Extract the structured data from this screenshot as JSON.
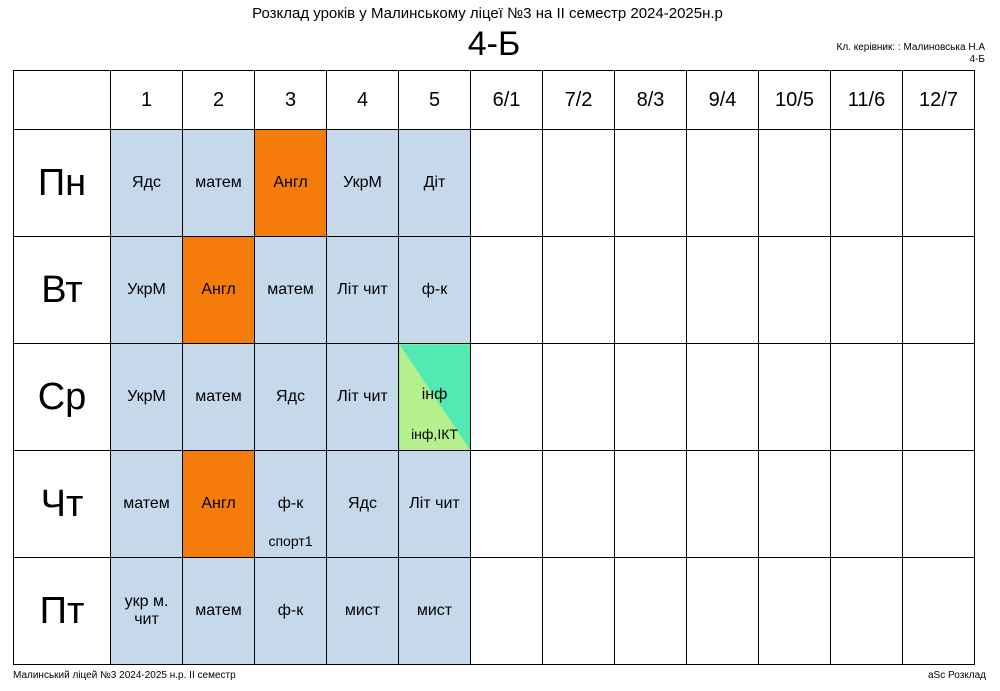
{
  "header": {
    "title": "Розклад уроків у Малинському ліцеї №3 на ІІ семестр 2024-2025н.р",
    "class_name": "4-Б",
    "teacher_line": "Кл. керівник: : Малиновська Н.А",
    "teacher_class": "4-Б"
  },
  "periods": [
    "1",
    "2",
    "3",
    "4",
    "5",
    "6/1",
    "7/2",
    "8/3",
    "9/4",
    "10/5",
    "11/6",
    "12/7"
  ],
  "days": [
    {
      "name": "Пн",
      "lessons": [
        {
          "subject": "Ядс",
          "room": "",
          "type": "regular"
        },
        {
          "subject": "матем",
          "room": "",
          "type": "regular"
        },
        {
          "subject": "Англ",
          "room": "",
          "type": "english"
        },
        {
          "subject": "УкрМ",
          "room": "",
          "type": "regular"
        },
        {
          "subject": "Діт",
          "room": "",
          "type": "regular"
        }
      ]
    },
    {
      "name": "Вт",
      "lessons": [
        {
          "subject": "УкрМ",
          "room": "",
          "type": "regular"
        },
        {
          "subject": "Англ",
          "room": "",
          "type": "english"
        },
        {
          "subject": "матем",
          "room": "",
          "type": "regular"
        },
        {
          "subject": "Літ чит",
          "room": "",
          "type": "regular"
        },
        {
          "subject": "ф-к",
          "room": "",
          "type": "regular"
        }
      ]
    },
    {
      "name": "Ср",
      "lessons": [
        {
          "subject": "УкрМ",
          "room": "",
          "type": "regular"
        },
        {
          "subject": "матем",
          "room": "",
          "type": "regular"
        },
        {
          "subject": "Ядс",
          "room": "",
          "type": "regular"
        },
        {
          "subject": "Літ чит",
          "room": "",
          "type": "regular"
        },
        {
          "subject": "інф",
          "room": "інф,ІКТ",
          "type": "split"
        }
      ]
    },
    {
      "name": "Чт",
      "lessons": [
        {
          "subject": "матем",
          "room": "",
          "type": "regular"
        },
        {
          "subject": "Англ",
          "room": "",
          "type": "english"
        },
        {
          "subject": "ф-к",
          "room": "спорт1",
          "type": "regular"
        },
        {
          "subject": "Ядс",
          "room": "",
          "type": "regular"
        },
        {
          "subject": "Літ чит",
          "room": "",
          "type": "regular"
        }
      ]
    },
    {
      "name": "Пт",
      "lessons": [
        {
          "subject": "укр м. чит",
          "room": "",
          "type": "regular"
        },
        {
          "subject": "матем",
          "room": "",
          "type": "regular"
        },
        {
          "subject": "ф-к",
          "room": "",
          "type": "regular"
        },
        {
          "subject": "мист",
          "room": "",
          "type": "regular"
        },
        {
          "subject": "мист",
          "room": "",
          "type": "regular"
        }
      ]
    }
  ],
  "colors": {
    "regular": "#c5d9eb",
    "english": "#f57c0a",
    "split_upper": "#53e9b2",
    "split_lower": "#b6ef8e"
  },
  "footer": {
    "left": "Малинський ліцей №3  2024-2025 н.р. ІІ семестр",
    "right": "aSc Розклад"
  }
}
